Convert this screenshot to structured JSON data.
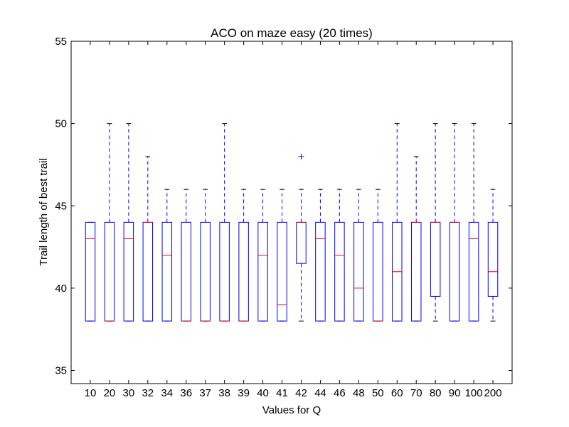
{
  "chart_data": {
    "type": "box",
    "title": "ACO on maze easy (20 times)",
    "xlabel": "Values for Q",
    "ylabel": "Trail length of best trail",
    "ylim": [
      34.2,
      55
    ],
    "yticks": [
      35,
      40,
      45,
      50,
      55
    ],
    "grid": false,
    "categories": [
      "10",
      "20",
      "30",
      "32",
      "34",
      "36",
      "37",
      "38",
      "39",
      "40",
      "41",
      "42",
      "44",
      "46",
      "48",
      "50",
      "60",
      "70",
      "80",
      "90",
      "100",
      "200"
    ],
    "boxes": [
      {
        "whislo": 38,
        "q1": 38,
        "med": 43,
        "q3": 44,
        "whishi": 44,
        "fliers": []
      },
      {
        "whislo": 38,
        "q1": 38,
        "med": 38,
        "q3": 44,
        "whishi": 50,
        "fliers": []
      },
      {
        "whislo": 38,
        "q1": 38,
        "med": 43,
        "q3": 44,
        "whishi": 50,
        "fliers": []
      },
      {
        "whislo": 38,
        "q1": 38,
        "med": 44,
        "q3": 44,
        "whishi": 48,
        "fliers": []
      },
      {
        "whislo": 38,
        "q1": 38,
        "med": 42,
        "q3": 44,
        "whishi": 46,
        "fliers": []
      },
      {
        "whislo": 38,
        "q1": 38,
        "med": 38,
        "q3": 44,
        "whishi": 46,
        "fliers": []
      },
      {
        "whislo": 38,
        "q1": 38,
        "med": 38,
        "q3": 44,
        "whishi": 46,
        "fliers": []
      },
      {
        "whislo": 38,
        "q1": 38,
        "med": 38,
        "q3": 44,
        "whishi": 50,
        "fliers": []
      },
      {
        "whislo": 38,
        "q1": 38,
        "med": 38,
        "q3": 44,
        "whishi": 46,
        "fliers": []
      },
      {
        "whislo": 38,
        "q1": 38,
        "med": 42,
        "q3": 44,
        "whishi": 46,
        "fliers": []
      },
      {
        "whislo": 38,
        "q1": 38,
        "med": 39,
        "q3": 44,
        "whishi": 46,
        "fliers": []
      },
      {
        "whislo": 38,
        "q1": 41.5,
        "med": 44,
        "q3": 44,
        "whishi": 46,
        "fliers": [
          48
        ]
      },
      {
        "whislo": 38,
        "q1": 38,
        "med": 43,
        "q3": 44,
        "whishi": 46,
        "fliers": []
      },
      {
        "whislo": 38,
        "q1": 38,
        "med": 42,
        "q3": 44,
        "whishi": 46,
        "fliers": []
      },
      {
        "whislo": 38,
        "q1": 38,
        "med": 40,
        "q3": 44,
        "whishi": 46,
        "fliers": []
      },
      {
        "whislo": 38,
        "q1": 38,
        "med": 38,
        "q3": 44,
        "whishi": 46,
        "fliers": []
      },
      {
        "whislo": 38,
        "q1": 38,
        "med": 41,
        "q3": 44,
        "whishi": 50,
        "fliers": []
      },
      {
        "whislo": 38,
        "q1": 38,
        "med": 44,
        "q3": 44,
        "whishi": 48,
        "fliers": []
      },
      {
        "whislo": 38,
        "q1": 39.5,
        "med": 44,
        "q3": 44,
        "whishi": 50,
        "fliers": []
      },
      {
        "whislo": 38,
        "q1": 38,
        "med": 44,
        "q3": 44,
        "whishi": 50,
        "fliers": []
      },
      {
        "whislo": 38,
        "q1": 38,
        "med": 43,
        "q3": 44,
        "whishi": 50,
        "fliers": []
      },
      {
        "whislo": 38,
        "q1": 39.5,
        "med": 41,
        "q3": 44,
        "whishi": 46,
        "fliers": []
      }
    ],
    "colors": {
      "box": "#0000ff",
      "median": "#ff0000",
      "whisker": "#0000ff",
      "cap": "#000000",
      "flier": "#0000ff",
      "axes": "#000000",
      "background": "#ffffff"
    }
  }
}
